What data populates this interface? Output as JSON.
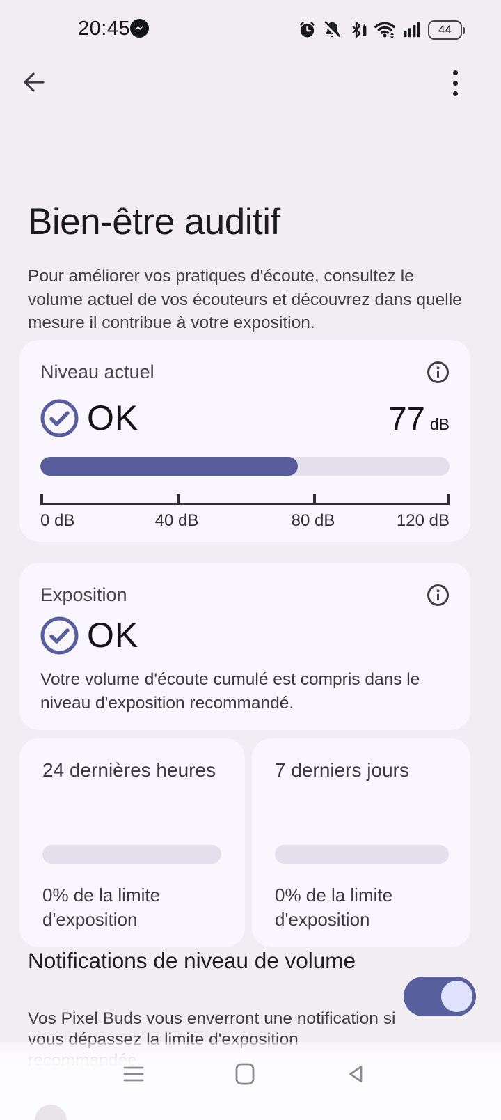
{
  "status_bar": {
    "time": "20:45",
    "battery_level": "44",
    "icons": [
      "messenger-icon",
      "alarm-icon",
      "notifications-off-icon",
      "bluetooth-battery-icon",
      "wifi-icon",
      "signal-icon",
      "battery-icon"
    ]
  },
  "app_bar": {
    "back_icon": "arrow-left",
    "menu_icon": "kebab-menu"
  },
  "page": {
    "title": "Bien-être auditif",
    "description": "Pour améliorer vos pratiques d'écoute, consultez le volume actuel de vos écouteurs et découvrez dans quelle mesure il contribue à votre exposition."
  },
  "current_level_card": {
    "title": "Niveau actuel",
    "status": "OK",
    "value": "77",
    "unit": "dB",
    "progress_percent": 63,
    "scale_min": 0,
    "scale_max": 120,
    "scale_labels": [
      "0 dB",
      "40 dB",
      "80 dB",
      "120 dB"
    ]
  },
  "exposure_card": {
    "title": "Exposition",
    "status": "OK",
    "description": "Votre volume d'écoute cumulé est compris dans le niveau d'exposition recommandé."
  },
  "history_cards": [
    {
      "title": "24 dernières heures",
      "progress_percent": 0,
      "label": "0% de la limite d'exposition"
    },
    {
      "title": "7 derniers jours",
      "progress_percent": 0,
      "label": "0% de la limite d'exposition"
    }
  ],
  "notifications": {
    "title": "Notifications de niveau de volume",
    "description": "Vos Pixel Buds vous enverront une notification si vous dépassez la limite d'exposition recommandée.",
    "enabled": true
  },
  "nav_bar": {
    "icons": [
      "recents-menu-icon",
      "home-icon",
      "back-triangle-icon"
    ]
  },
  "colors": {
    "accent_indigo": "#575C9B",
    "toggle_thumb": "#DFE2FC",
    "page_background": "#F2EDF3",
    "card_background": "#F9F6FD",
    "track": "#E3E0EB"
  }
}
